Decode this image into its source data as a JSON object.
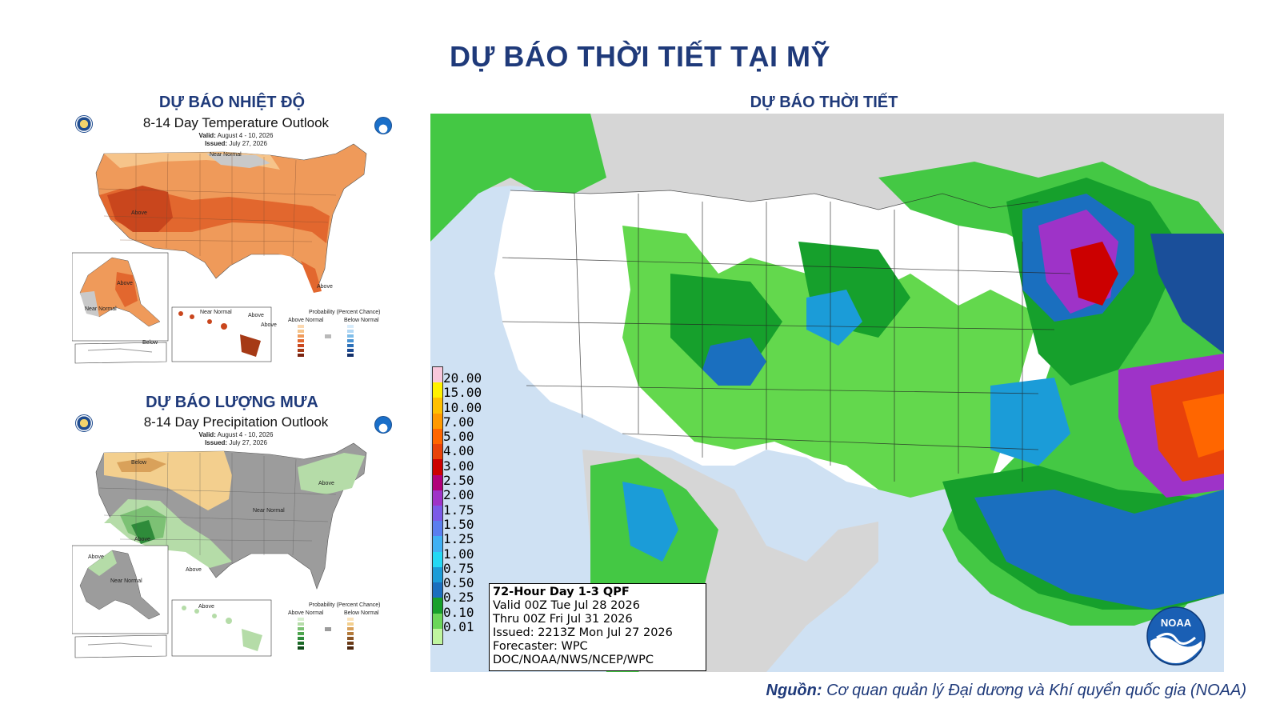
{
  "page": {
    "title": "DỰ BÁO THỜI TIẾT TẠI MỸ",
    "source_label": "Nguồn:",
    "source_text": "Cơ quan quản lý Đại dương và Khí quyển quốc gia (NOAA)"
  },
  "temperature": {
    "section_title": "DỰ BÁO NHIỆT ĐỘ",
    "map_title": "8-14 Day Temperature Outlook",
    "valid_label": "Valid:",
    "valid_value": "August 4 - 10, 2026",
    "issued_label": "Issued:",
    "issued_value": "July 27, 2026",
    "region_labels": [
      "Near Normal",
      "Above",
      "Above",
      "Above",
      "Near Normal",
      "Above",
      "Above",
      "Below",
      "Near Normal"
    ],
    "legend_title": "Probability (Percent Chance)",
    "legend_above": "Above Normal",
    "legend_below": "Below Normal",
    "colors": {
      "above_light": "#f6c48a",
      "above_mid": "#ef9a5a",
      "above_strong": "#e2672e",
      "above_max": "#c9461d",
      "near": "#b9b9b9"
    }
  },
  "precipitation": {
    "section_title": "DỰ BÁO LƯỢNG MƯA",
    "map_title": "8-14 Day Precipitation Outlook",
    "valid_label": "Valid:",
    "valid_value": "August 4 - 10, 2026",
    "issued_label": "Issued:",
    "issued_value": "July 27, 2026",
    "region_labels": [
      "Below",
      "Above",
      "Near Normal",
      "Above",
      "Above",
      "Above",
      "Near Normal",
      "Above"
    ],
    "legend_title": "Probability (Percent Chance)",
    "legend_above": "Above Normal",
    "legend_below": "Below Normal",
    "colors": {
      "below_light": "#f3cf8e",
      "below_mid": "#d9a15a",
      "near": "#9c9c9c",
      "above_light": "#b5dca8",
      "above_mid": "#7cc174",
      "above_strong": "#2e8b3a"
    }
  },
  "qpf": {
    "section_title": "DỰ BÁO THỜI TIẾT",
    "legend_values": [
      "20.00",
      "15.00",
      "10.00",
      "7.00",
      "5.00",
      "4.00",
      "3.00",
      "2.50",
      "2.00",
      "1.75",
      "1.50",
      "1.25",
      "1.00",
      "0.75",
      "0.50",
      "0.25",
      "0.10",
      "0.01"
    ],
    "legend_colors": [
      "#f8c8dc",
      "#fff200",
      "#ffc000",
      "#ff9900",
      "#ff6600",
      "#e8420a",
      "#cc0000",
      "#b0007a",
      "#9e33c8",
      "#7a5ae8",
      "#5a7ef0",
      "#3fb0f4",
      "#23d8f5",
      "#1b9cd8",
      "#1a6fbf",
      "#16a02c",
      "#6ad65a",
      "#bff5a0"
    ],
    "info_title": "72-Hour Day 1-3 QPF",
    "info_valid": "Valid 00Z Tue Jul 28 2026",
    "info_thru": "Thru 00Z Fri Jul 31 2026",
    "info_issued": "Issued: 2213Z Mon Jul 27 2026",
    "info_forecaster": "Forecaster: WPC",
    "info_agency": "DOC/NOAA/NWS/NCEP/WPC",
    "logo_text": "NOAA"
  }
}
